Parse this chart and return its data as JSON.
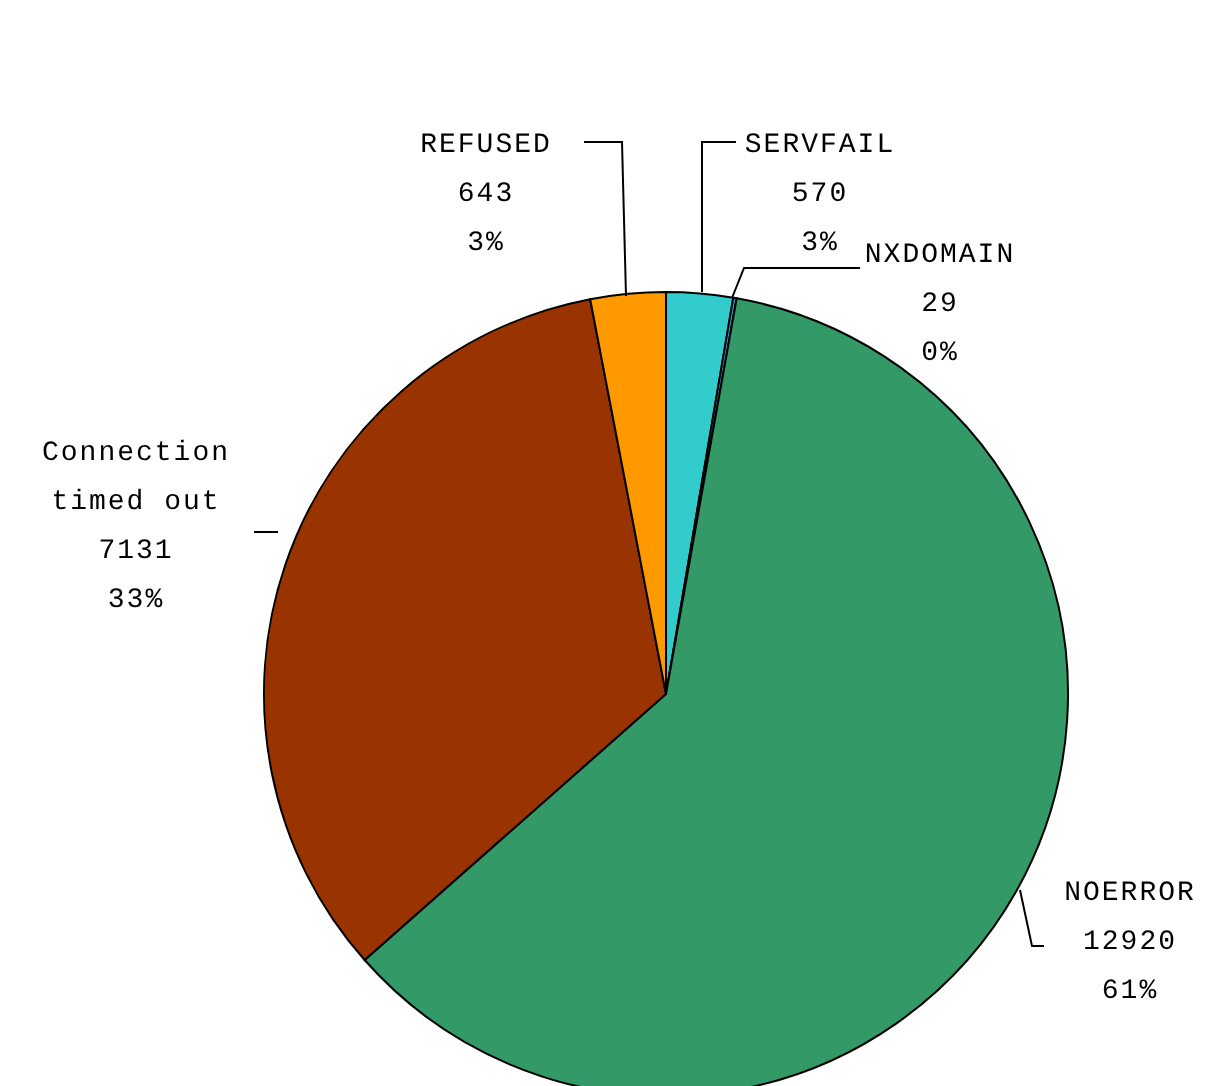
{
  "chart_data": {
    "type": "pie",
    "categories": [
      "SERVFAIL",
      "NXDOMAIN",
      "NOERROR",
      "Connection timed out",
      "REFUSED"
    ],
    "values": [
      570,
      29,
      12920,
      7131,
      643
    ],
    "colors": [
      "#33cccc",
      "#3399cc",
      "#339966",
      "#993300",
      "#ff9900"
    ],
    "value_labels": [
      "570\n3%",
      "29\n0%",
      "12920\n61%",
      "7131\n33%",
      "643\n3%"
    ],
    "legend": false
  }
}
